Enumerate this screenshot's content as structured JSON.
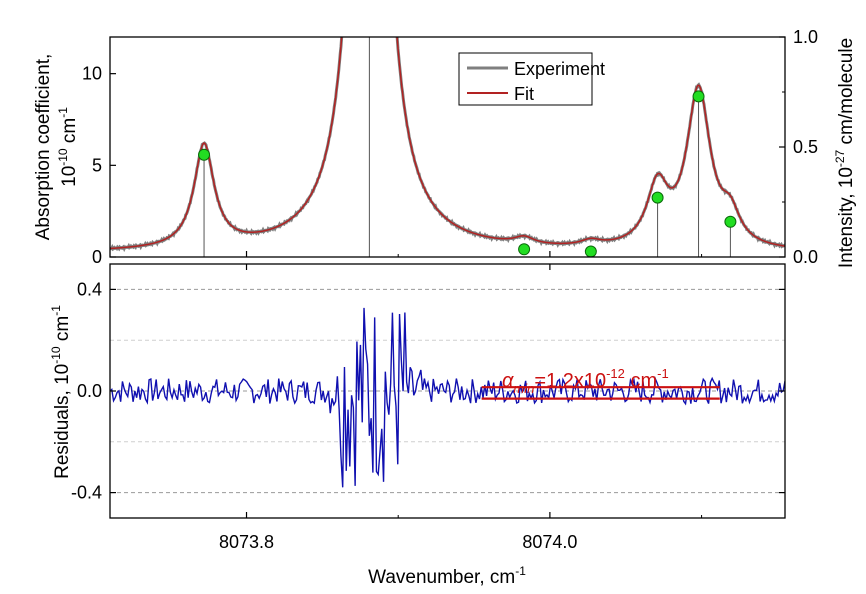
{
  "chart_data": [
    {
      "type": "line",
      "panel": "top",
      "x_range": [
        8073.71,
        8074.155
      ],
      "y_range": [
        0,
        12
      ],
      "y_ticks": [
        0,
        5,
        10
      ],
      "y_right_range": [
        0,
        1.0
      ],
      "y_right_ticks": [
        "0.0",
        "0.5",
        "1.0"
      ],
      "ylabel_parts": {
        "prefix": "Absorption coefficient,",
        "line2": "10",
        "exp": "-10",
        "unit": " cm",
        "unit_exp": "-1"
      },
      "ylabel_right_parts": {
        "prefix": "Intensity, 10",
        "exp": "-27",
        "unit": " cm/molecule"
      },
      "legend": {
        "position": "top-center",
        "entries": [
          {
            "name": "Experiment",
            "color": "#7f7f7f"
          },
          {
            "name": "Fit",
            "color": "#b22222"
          }
        ]
      },
      "peaks": [
        {
          "center": 8073.772,
          "amplitude": 5.6,
          "width": 0.008
        },
        {
          "center": 8073.881,
          "amplitude": 60,
          "width": 0.009
        },
        {
          "center": 8073.983,
          "amplitude": 0.38,
          "width": 0.008
        },
        {
          "center": 8074.027,
          "amplitude": 0.3,
          "width": 0.008
        },
        {
          "center": 8074.071,
          "amplitude": 3.2,
          "width": 0.0085
        },
        {
          "center": 8074.098,
          "amplitude": 8.6,
          "width": 0.0095
        },
        {
          "center": 8074.119,
          "amplitude": 1.5,
          "width": 0.0075
        }
      ],
      "baseline": 0.2,
      "stick_lines": [
        {
          "x": 8073.772,
          "y": 0.465
        },
        {
          "x": 8073.881,
          "y": 1.2
        },
        {
          "x": 8074.098,
          "y": 0.73
        },
        {
          "x": 8074.071,
          "y": 0.27
        },
        {
          "x": 8074.119,
          "y": 0.16
        }
      ],
      "markers": [
        {
          "x": 8073.772,
          "y": 0.465
        },
        {
          "x": 8073.983,
          "y": 0.035
        },
        {
          "x": 8074.027,
          "y": 0.025
        },
        {
          "x": 8074.071,
          "y": 0.27
        },
        {
          "x": 8074.098,
          "y": 0.73
        },
        {
          "x": 8074.119,
          "y": 0.16
        }
      ],
      "marker_color": "#22dd22"
    },
    {
      "type": "line",
      "panel": "bottom",
      "x_range": [
        8073.71,
        8074.155
      ],
      "y_range": [
        -0.5,
        0.5
      ],
      "y_ticks": [
        0.4,
        0.0,
        -0.4
      ],
      "y_tick_labels": [
        "0.4",
        "0.0",
        "-0.4"
      ],
      "x_ticks": [
        8073.8,
        8074.0
      ],
      "x_tick_labels": [
        "8073.8",
        "8074.0"
      ],
      "xlabel_parts": {
        "text": "Wavenumber, cm",
        "exp": "-1"
      },
      "ylabel_parts": {
        "prefix": "Residuals, 10",
        "exp": "-10",
        "unit": " cm",
        "unit_exp": "-1"
      },
      "series": [
        {
          "color": "#1010b0",
          "noise_amplitude": 0.05,
          "strong_region": [
            8073.862,
            8073.905
          ],
          "strong_amplitude": 0.38
        }
      ],
      "band": {
        "x_start": 8073.955,
        "x_end": 8074.112,
        "y_values": [
          0.015,
          -0.03
        ],
        "color": "#cc1111"
      },
      "annotation": {
        "prefix": "α",
        "sub": "min",
        "mid": "=1.2x10",
        "exp": "-12",
        "unit": " cm",
        "unit_exp": "-1"
      }
    }
  ]
}
